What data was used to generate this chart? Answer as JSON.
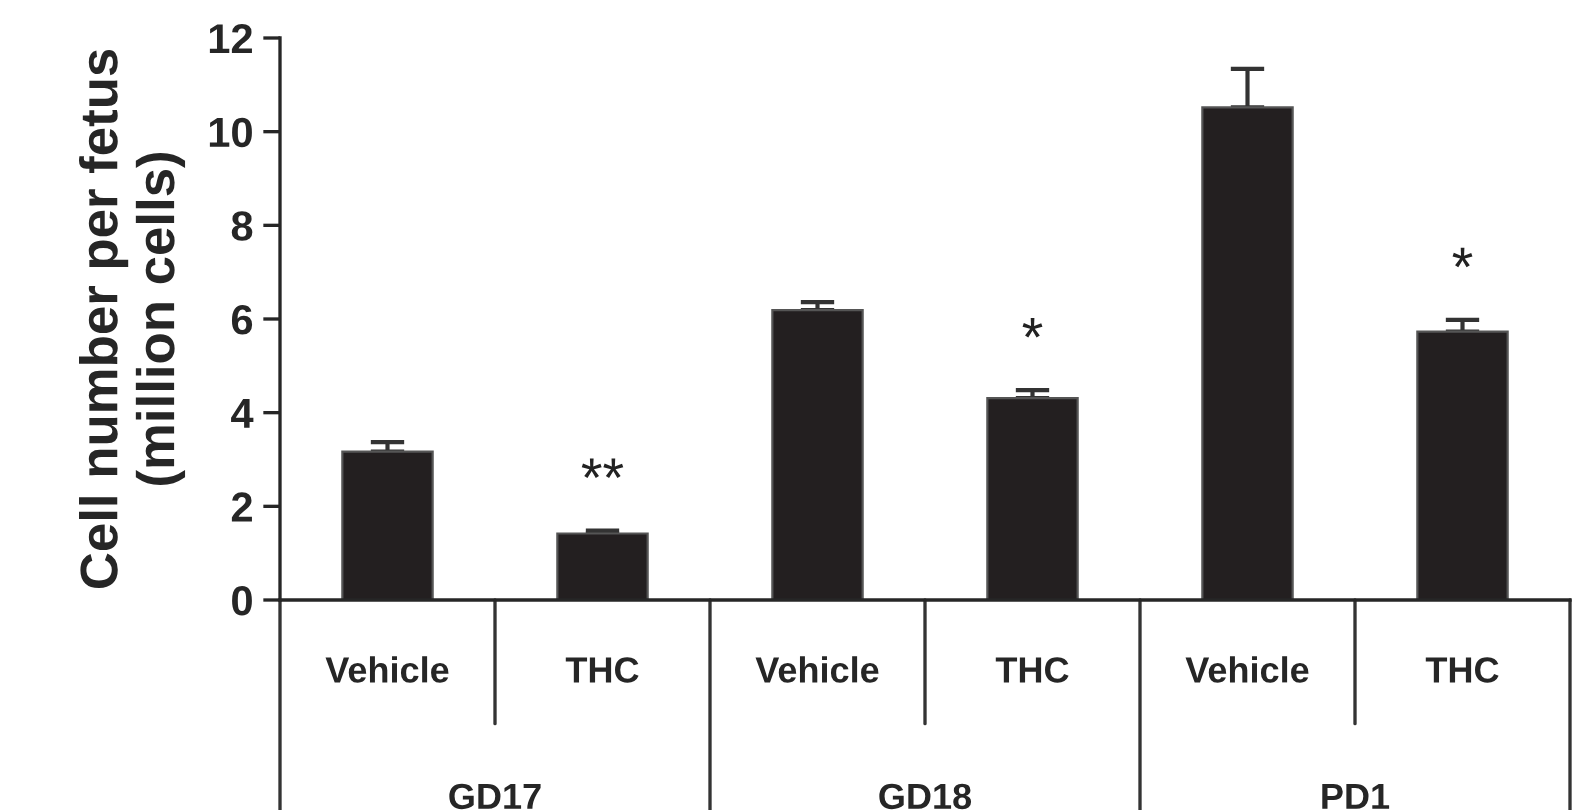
{
  "chart_data": {
    "type": "bar",
    "ylabel": "Cell number per fetus\n(million cells)",
    "categories": [
      "Vehicle",
      "THC",
      "Vehicle",
      "THC",
      "Vehicle",
      "THC"
    ],
    "values": [
      3.17,
      1.42,
      6.19,
      4.31,
      10.52,
      5.73
    ],
    "errors": [
      0.2,
      0.06,
      0.17,
      0.17,
      0.82,
      0.25
    ],
    "value_labels": [
      null,
      "**",
      null,
      "*",
      null,
      "*"
    ],
    "color": "#231f20",
    "ylim": [
      0,
      12
    ],
    "yticks": [
      0,
      2,
      4,
      6,
      8,
      10,
      12
    ],
    "annotations": [
      "GD17",
      "GD18",
      "PD1"
    ]
  }
}
